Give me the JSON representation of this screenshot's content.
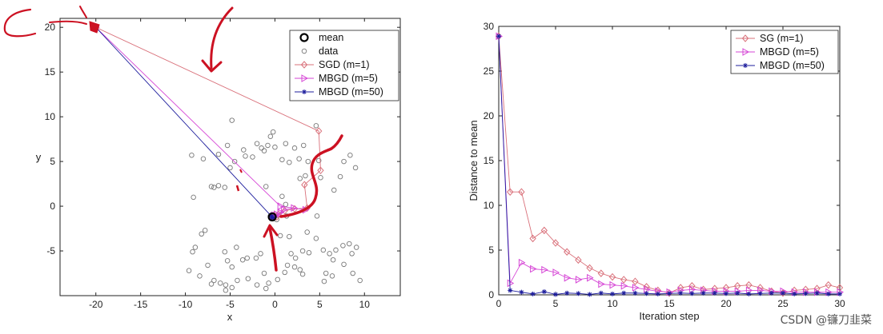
{
  "colors": {
    "sgd": "#d9707a",
    "mbgd5": "#d646d6",
    "mbgd50": "#1c1c9c",
    "data": "#777777",
    "annotation": "#cc1122"
  },
  "watermark": "CSDN @镰刀韭菜",
  "chart_data": [
    {
      "type": "scatter",
      "xlabel": "x",
      "ylabel": "y",
      "xlim": [
        -24,
        14
      ],
      "ylim": [
        -10,
        21
      ],
      "xticks": [
        -20,
        -15,
        -10,
        -5,
        0,
        5,
        10
      ],
      "yticks": [
        -5,
        0,
        5,
        10,
        15,
        20
      ],
      "legend_position": "top-right",
      "legend": [
        "mean",
        "data",
        "SGD (m=1)",
        "MBGD (m=5)",
        "MBGD (m=50)"
      ],
      "mean": [
        -0.3,
        -1.2
      ],
      "data_points": [
        [
          -4.8,
          9.6
        ],
        [
          -0.5,
          7.8
        ],
        [
          -0.2,
          8.3
        ],
        [
          1.2,
          7.0
        ],
        [
          -2.0,
          7.0
        ],
        [
          -1.5,
          6.5
        ],
        [
          -0.8,
          6.8
        ],
        [
          -3.5,
          6.3
        ],
        [
          -5.3,
          6.8
        ],
        [
          -2.5,
          5.5
        ],
        [
          -1.2,
          6.2
        ],
        [
          0.0,
          6.6
        ],
        [
          2.2,
          6.5
        ],
        [
          4.6,
          9.0
        ],
        [
          3.2,
          6.8
        ],
        [
          -9.3,
          5.7
        ],
        [
          -8.0,
          5.3
        ],
        [
          -4.5,
          5.0
        ],
        [
          -6.3,
          5.8
        ],
        [
          -3.3,
          5.6
        ],
        [
          0.8,
          5.2
        ],
        [
          2.7,
          5.3
        ],
        [
          3.7,
          5.0
        ],
        [
          1.6,
          4.9
        ],
        [
          4.9,
          5.1
        ],
        [
          7.7,
          5.0
        ],
        [
          8.4,
          5.7
        ],
        [
          -6.3,
          2.3
        ],
        [
          -9.1,
          1.0
        ],
        [
          -7.1,
          2.2
        ],
        [
          -1.0,
          2.2
        ],
        [
          -5.0,
          4.3
        ],
        [
          2.8,
          3.1
        ],
        [
          3.4,
          3.4
        ],
        [
          5.1,
          3.2
        ],
        [
          7.3,
          3.3
        ],
        [
          9.0,
          4.3
        ],
        [
          -5.6,
          2.1
        ],
        [
          -6.8,
          2.1
        ],
        [
          0.8,
          1.1
        ],
        [
          1.2,
          0.2
        ],
        [
          4.7,
          -1.1
        ],
        [
          6.6,
          1.8
        ],
        [
          0.2,
          -1.5
        ],
        [
          -0.4,
          -1.1
        ],
        [
          1.3,
          -1.1
        ],
        [
          -7.8,
          -2.7
        ],
        [
          -8.2,
          -3.1
        ],
        [
          -9.2,
          -5.1
        ],
        [
          -8.9,
          -4.6
        ],
        [
          -5.6,
          -5.1
        ],
        [
          -4.3,
          -4.6
        ],
        [
          -5.3,
          -6.1
        ],
        [
          -4.8,
          -6.8
        ],
        [
          -3.6,
          -6.0
        ],
        [
          -3.1,
          -5.8
        ],
        [
          -2.1,
          -5.8
        ],
        [
          -1.6,
          -5.3
        ],
        [
          -9.6,
          -7.2
        ],
        [
          -7.5,
          -6.6
        ],
        [
          -6.8,
          -8.3
        ],
        [
          -6.1,
          -8.6
        ],
        [
          -8.4,
          -7.8
        ],
        [
          -7.1,
          -8.7
        ],
        [
          -5.5,
          -8.8
        ],
        [
          -4.2,
          -8.3
        ],
        [
          -4.8,
          -9.1
        ],
        [
          -2.0,
          -8.8
        ],
        [
          -3.0,
          -8.1
        ],
        [
          -1.2,
          -7.5
        ],
        [
          -0.7,
          -8.6
        ],
        [
          -1.0,
          -9.2
        ],
        [
          0.3,
          -8.2
        ],
        [
          1.1,
          -7.4
        ],
        [
          1.4,
          -6.6
        ],
        [
          2.2,
          -6.8
        ],
        [
          2.8,
          -7.1
        ],
        [
          3.1,
          -7.6
        ],
        [
          1.8,
          -5.3
        ],
        [
          2.3,
          -5.8
        ],
        [
          3.1,
          -5.0
        ],
        [
          3.8,
          -5.2
        ],
        [
          4.6,
          -3.6
        ],
        [
          3.6,
          -2.9
        ],
        [
          5.4,
          -4.9
        ],
        [
          6.1,
          -5.3
        ],
        [
          6.8,
          -4.9
        ],
        [
          6.5,
          -6.0
        ],
        [
          7.6,
          -4.4
        ],
        [
          8.3,
          -4.2
        ],
        [
          9.1,
          -4.6
        ],
        [
          8.6,
          -5.3
        ],
        [
          5.7,
          -7.5
        ],
        [
          6.4,
          -7.8
        ],
        [
          7.7,
          -6.5
        ],
        [
          8.7,
          -7.5
        ],
        [
          9.5,
          -8.3
        ],
        [
          0.6,
          -3.3
        ],
        [
          5.5,
          -8.4
        ],
        [
          -5.5,
          -9.4
        ],
        [
          1.6,
          -3.4
        ]
      ],
      "series": [
        {
          "name": "SGD (m=1)",
          "marker": "diamond",
          "x": [
            -20,
            4.9,
            5.1,
            3.3,
            3.6,
            2.2,
            1.1,
            0.4,
            -0.1,
            0.2,
            -0.3
          ],
          "y": [
            20,
            8.4,
            4.0,
            2.4,
            -0.2,
            -0.3,
            -0.5,
            -0.9,
            -1.0,
            -1.2,
            -1.1
          ]
        },
        {
          "name": "MBGD (m=5)",
          "marker": "triangle-right",
          "x": [
            -20,
            0.6,
            3.4,
            2.1,
            1.0,
            0.6,
            0.2,
            -0.1,
            0.1,
            -0.2,
            -0.3
          ],
          "y": [
            20,
            0.0,
            -0.4,
            -0.2,
            -0.4,
            -0.7,
            -0.9,
            -1.0,
            -1.1,
            -1.2,
            -1.2
          ]
        },
        {
          "name": "MBGD (m=50)",
          "marker": "asterisk",
          "x": [
            -20,
            -0.5,
            -0.2,
            -0.4,
            -0.3
          ],
          "y": [
            20,
            -1.0,
            -1.3,
            -1.2,
            -1.2
          ]
        }
      ]
    },
    {
      "type": "line",
      "xlabel": "Iteration step",
      "ylabel": "Distance to mean",
      "xlim": [
        0,
        30
      ],
      "ylim": [
        0,
        30
      ],
      "xticks": [
        0,
        5,
        10,
        15,
        20,
        25,
        30
      ],
      "yticks": [
        0,
        5,
        10,
        15,
        20,
        25,
        30
      ],
      "legend_position": "top-right",
      "x": [
        0,
        1,
        2,
        3,
        4,
        5,
        6,
        7,
        8,
        9,
        10,
        11,
        12,
        13,
        14,
        15,
        16,
        17,
        18,
        19,
        20,
        21,
        22,
        23,
        24,
        25,
        26,
        27,
        28,
        29,
        30
      ],
      "series": [
        {
          "name": "SG (m=1)",
          "marker": "diamond",
          "values": [
            28.9,
            11.5,
            11.5,
            6.3,
            7.2,
            5.8,
            4.8,
            3.9,
            3.0,
            2.4,
            2.0,
            1.7,
            1.5,
            0.9,
            0.5,
            0.2,
            0.8,
            1.0,
            0.6,
            0.7,
            0.8,
            1.0,
            1.1,
            0.8,
            0.4,
            0.2,
            0.5,
            0.6,
            0.7,
            1.1,
            0.8
          ]
        },
        {
          "name": "MBGD (m=5)",
          "marker": "triangle-right",
          "values": [
            28.9,
            1.3,
            3.6,
            2.9,
            2.8,
            2.5,
            1.9,
            1.7,
            1.9,
            1.2,
            1.1,
            1.0,
            0.8,
            0.6,
            0.4,
            0.3,
            0.5,
            0.6,
            0.5,
            0.4,
            0.4,
            0.4,
            0.5,
            0.5,
            0.4,
            0.4,
            0.3,
            0.3,
            0.3,
            0.3,
            0.3
          ]
        },
        {
          "name": "MBGD (m=50)",
          "marker": "asterisk",
          "values": [
            28.9,
            0.5,
            0.3,
            0.1,
            0.35,
            0.05,
            0.2,
            0.15,
            0.05,
            0.2,
            0.1,
            0.2,
            0.2,
            0.15,
            0.1,
            0.15,
            0.2,
            0.15,
            0.2,
            0.2,
            0.15,
            0.2,
            0.1,
            0.15,
            0.2,
            0.2,
            0.1,
            0.15,
            0.2,
            0.1,
            0.1
          ]
        }
      ]
    }
  ]
}
